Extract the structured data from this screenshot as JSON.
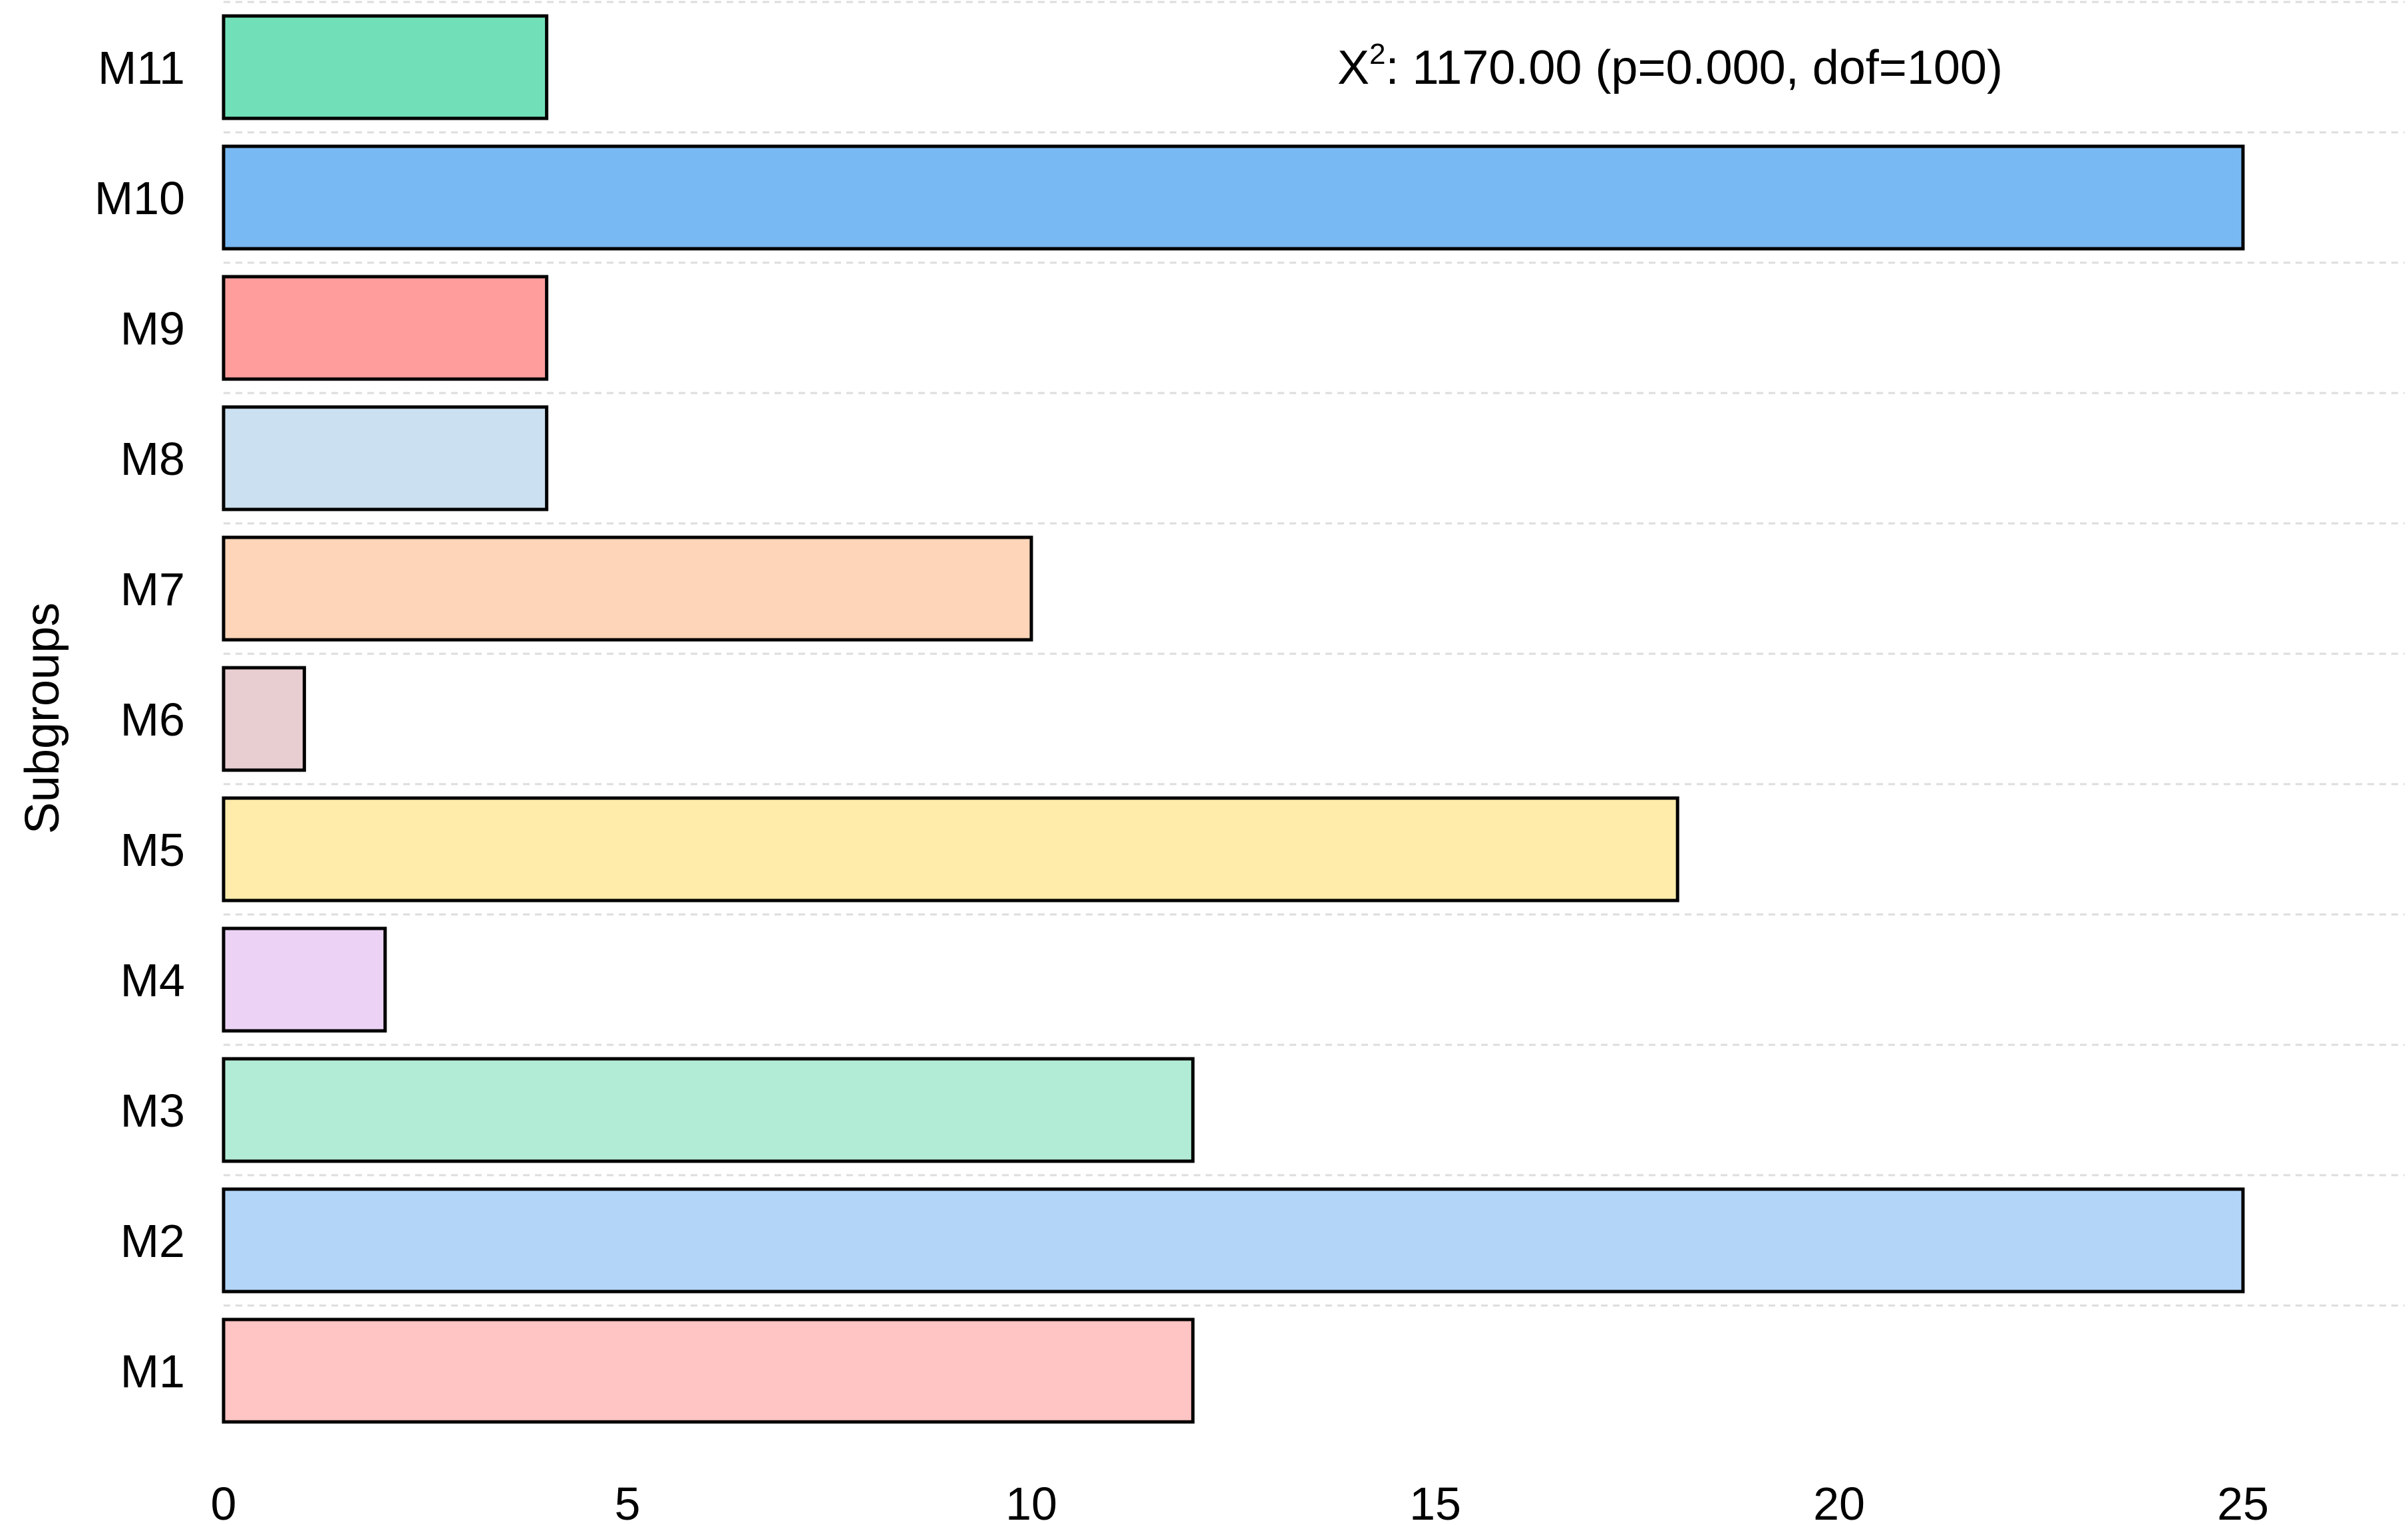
{
  "chart_data": {
    "type": "bar",
    "orientation": "horizontal",
    "categories": [
      "M1",
      "M2",
      "M3",
      "M4",
      "M5",
      "M6",
      "M7",
      "M8",
      "M9",
      "M10",
      "M11"
    ],
    "values": [
      12,
      25,
      12,
      2,
      18,
      1,
      10,
      4,
      4,
      25,
      4
    ],
    "colors": [
      "#ffc4c4",
      "#b3d5f8",
      "#b3ecd6",
      "#ecd3f5",
      "#ffecaa",
      "#e8cdd1",
      "#fed5b8",
      "#cbe0f0",
      "#ff9d9d",
      "#78b8f3",
      "#71e0b8"
    ],
    "title": "",
    "xlabel": "",
    "ylabel": "Subgroups",
    "xlim": [
      0,
      27
    ],
    "xticks": [
      0,
      5,
      10,
      15,
      20,
      25
    ],
    "grid": "horizontal dashed",
    "legend": "none",
    "annotation": {
      "prefix": "X",
      "superscript": "2",
      "text": ": 1170.00 (p=0.000, dof=100)"
    }
  }
}
